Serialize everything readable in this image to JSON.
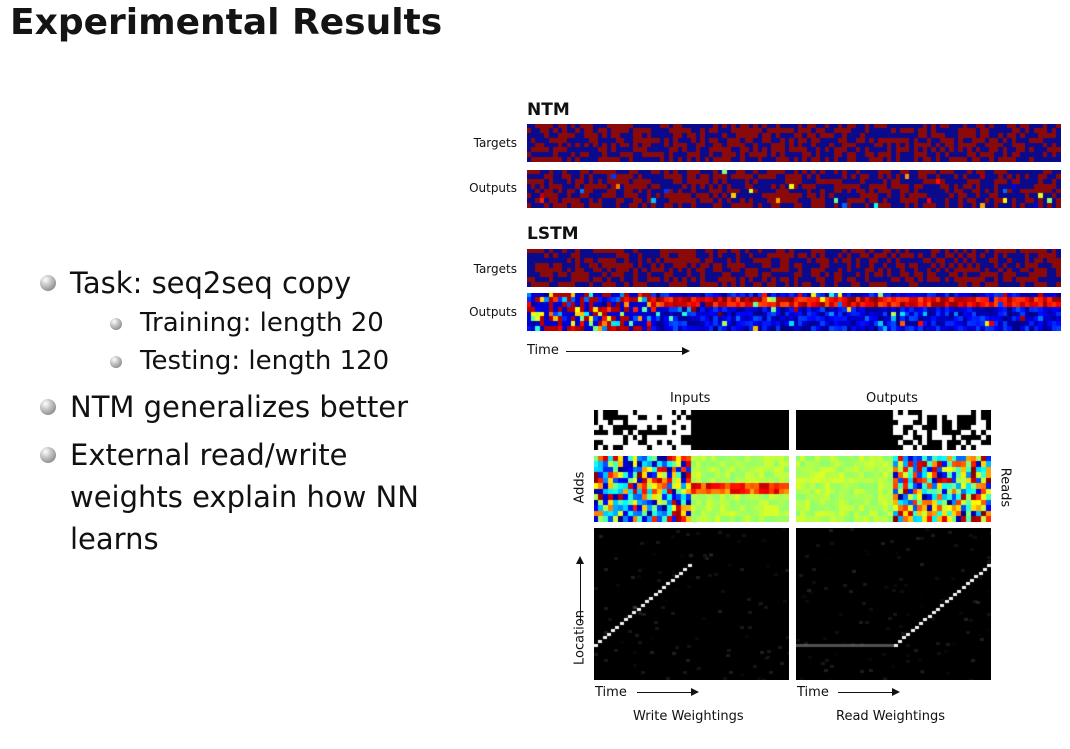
{
  "slide": {
    "title": "Experimental Results",
    "bullets": [
      {
        "text": "Task: seq2seq copy",
        "sub": [
          "Training: length 20",
          "Testing: length 120"
        ]
      },
      {
        "text": "NTM generalizes better"
      },
      {
        "text": "External read/write weights explain how NN learns"
      }
    ]
  },
  "figure_top": {
    "ntm_label": "NTM",
    "lstm_label": "LSTM",
    "targets_label": "Targets",
    "outputs_label": "Outputs",
    "time_label": "Time"
  },
  "figure_bottom": {
    "inputs_label": "Inputs",
    "outputs_label": "Outputs",
    "adds_label": "Adds",
    "reads_label": "Reads",
    "location_label": "Location",
    "time_label": "Time",
    "write_caption": "Write Weightings",
    "read_caption": "Read Weightings"
  },
  "colors": {
    "heat_red": "#8a0a0a",
    "heat_blue": "#0a0a8c"
  }
}
